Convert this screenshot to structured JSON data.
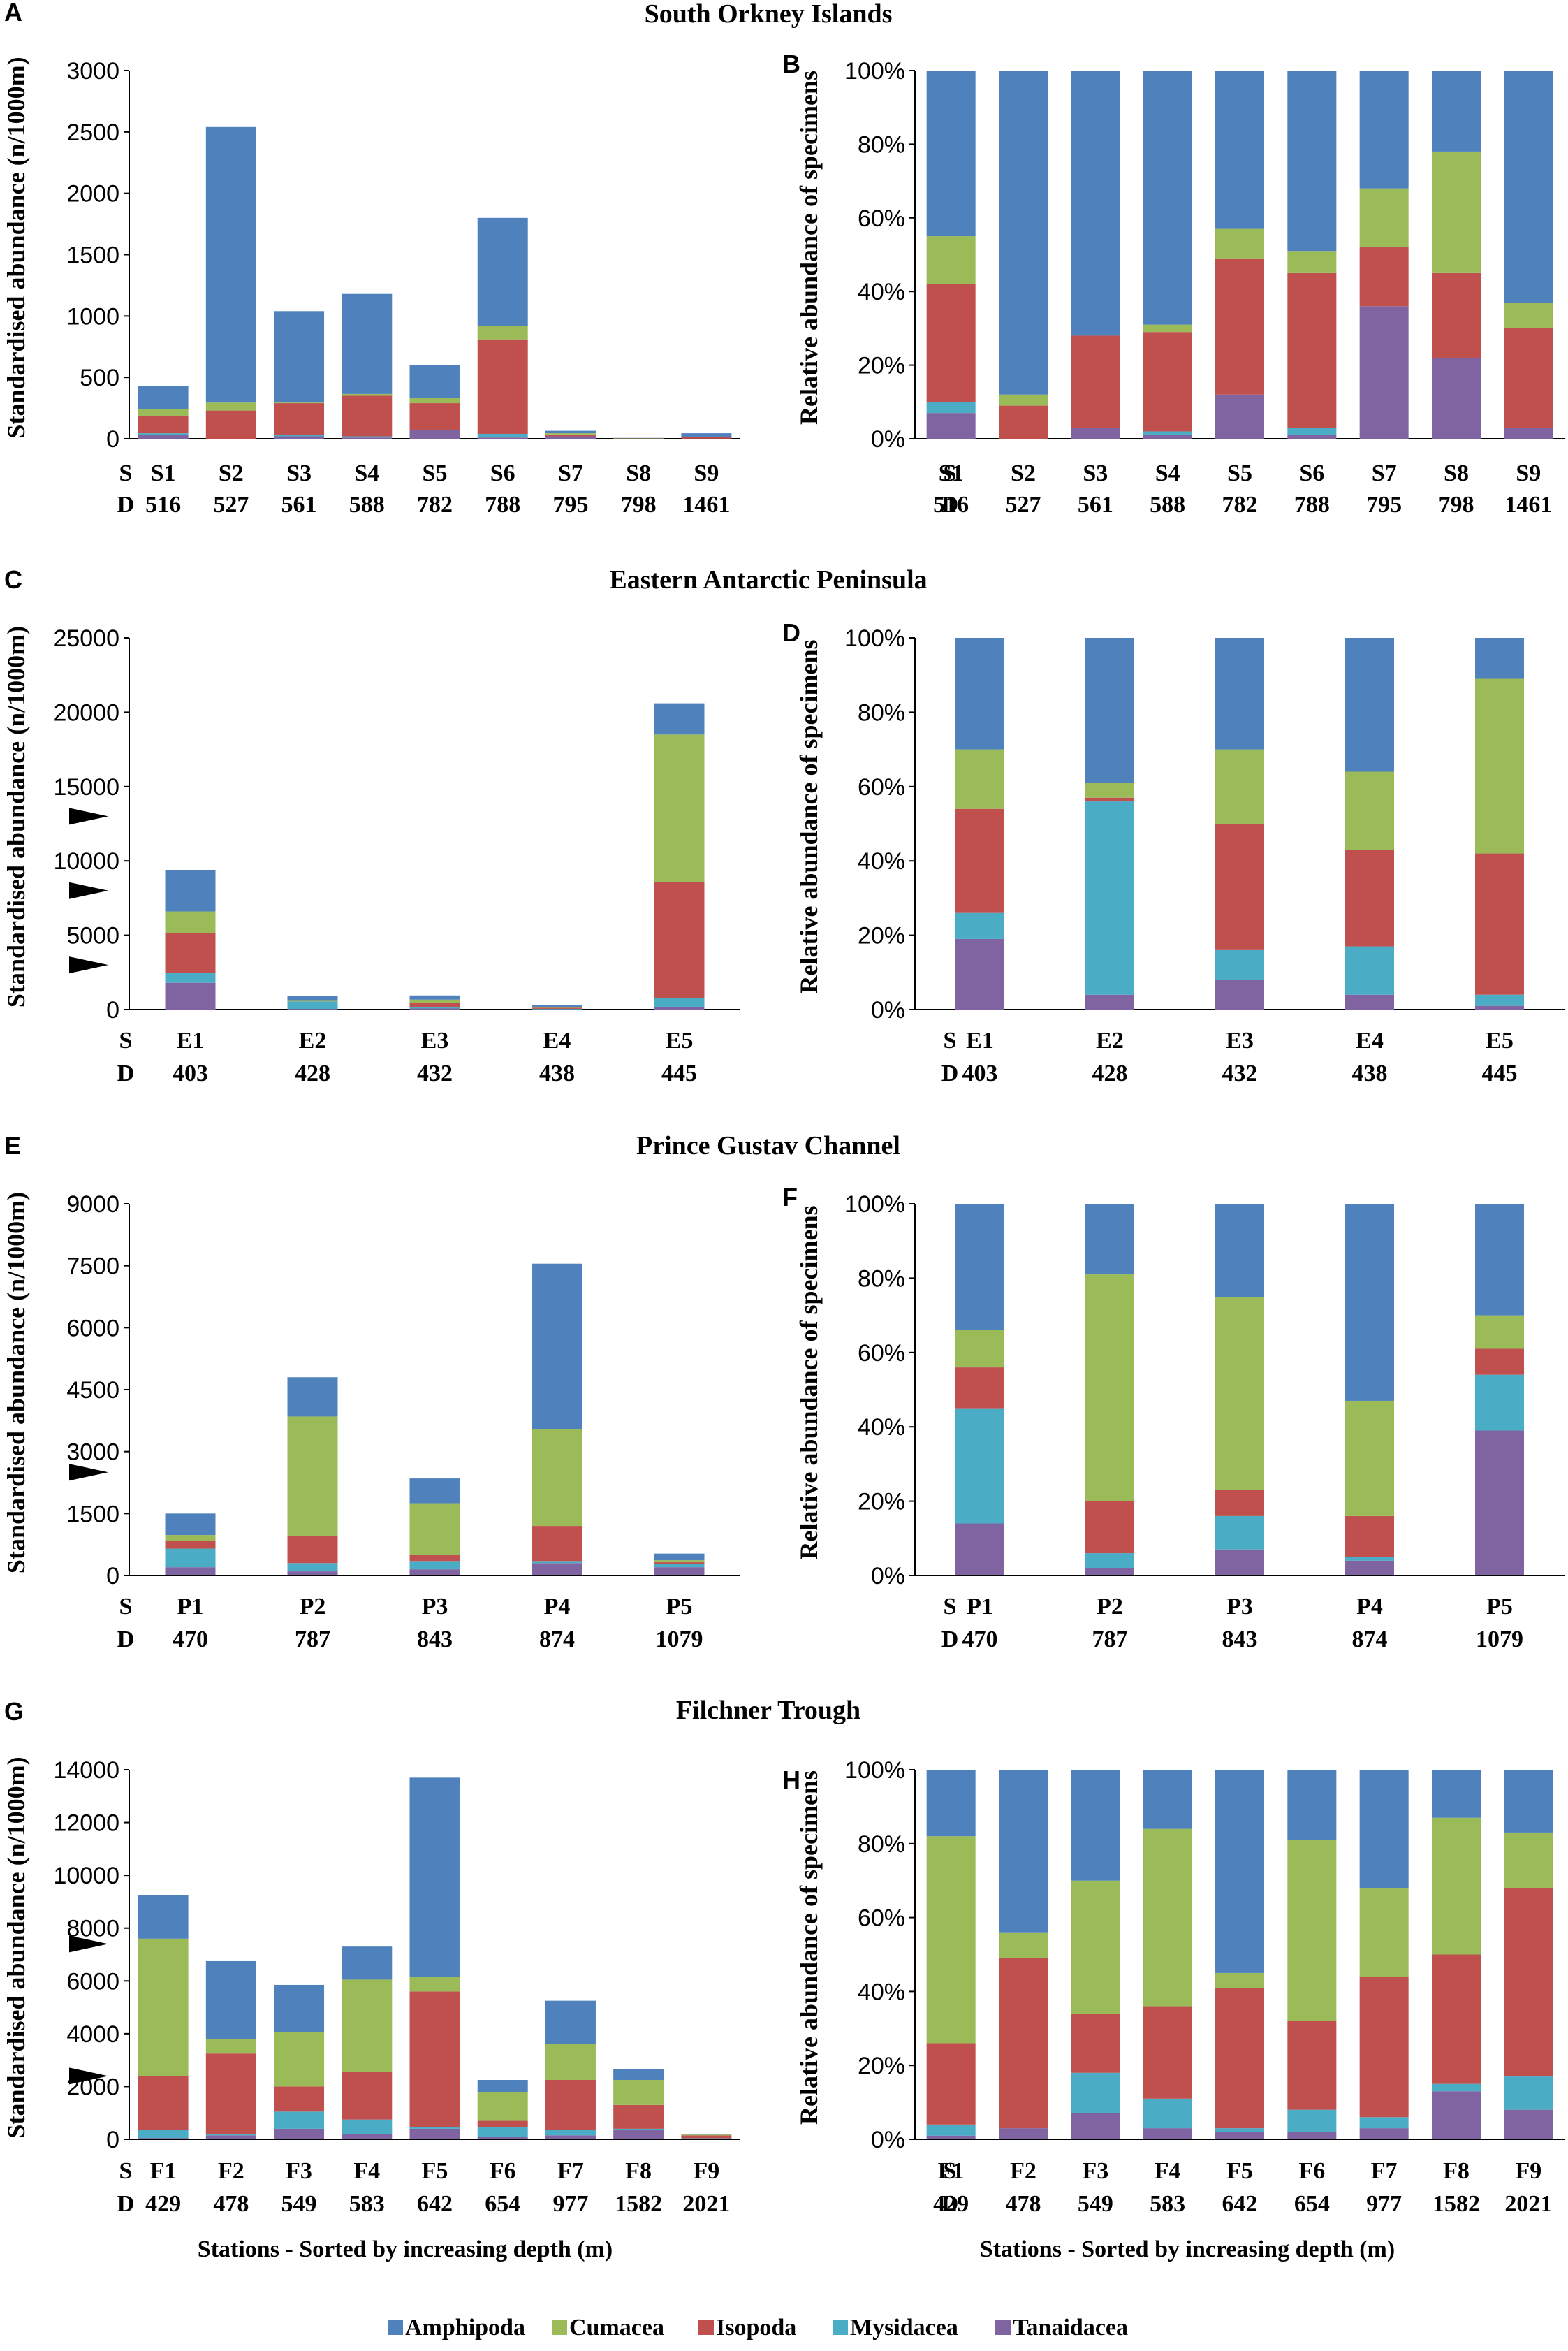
{
  "colors": {
    "Amphipoda": "#4F81BD",
    "Cumacea": "#9BBB59",
    "Isopoda": "#C0504D",
    "Mysidacea": "#4BACC6",
    "Tanaidacea": "#8064A2"
  },
  "legend": [
    "Amphipoda",
    "Cumacea",
    "Isopoda",
    "Mysidacea",
    "Tanaidacea"
  ],
  "region_titles": [
    "South Orkney Islands",
    "Eastern Antarctic Peninsula",
    "Prince Gustav Channel",
    "Filchner Trough"
  ],
  "row_labels": {
    "s": "S",
    "d": "D"
  },
  "xlabel": "Stations - Sorted by increasing depth (m)",
  "ylabel_abs": "Standardised abundance (n/1000m)",
  "ylabel_rel": "Relative abundance of specimens",
  "chart_data": [
    {
      "panel": "A",
      "type": "bar",
      "stacked": true,
      "region": "South Orkney Islands",
      "categories": [
        "S1",
        "S2",
        "S3",
        "S4",
        "S5",
        "S6",
        "S7",
        "S8",
        "S9"
      ],
      "depths": [
        "516",
        "527",
        "561",
        "588",
        "782",
        "788",
        "795",
        "798",
        "1461"
      ],
      "ylim": [
        0,
        3000
      ],
      "yticks": [
        0,
        500,
        1000,
        1500,
        2000,
        2500,
        3000
      ],
      "ytick_labels": [
        "0",
        "500",
        "1000",
        "1500",
        "2000",
        "2500",
        "3000"
      ],
      "series": [
        {
          "name": "Tanaidacea",
          "values": [
            30,
            0,
            20,
            10,
            70,
            10,
            20,
            0,
            1
          ]
        },
        {
          "name": "Mysidacea",
          "values": [
            15,
            0,
            10,
            10,
            0,
            30,
            0,
            0,
            0
          ]
        },
        {
          "name": "Isopoda",
          "values": [
            140,
            230,
            260,
            330,
            220,
            770,
            15,
            2,
            13
          ]
        },
        {
          "name": "Cumacea",
          "values": [
            55,
            65,
            5,
            15,
            40,
            110,
            10,
            3,
            3
          ]
        },
        {
          "name": "Amphipoda",
          "values": [
            190,
            2245,
            745,
            815,
            270,
            880,
            20,
            2,
            28
          ]
        }
      ],
      "ylabel": "Standardised abundance (n/1000m)",
      "arrows": []
    },
    {
      "panel": "B",
      "type": "bar",
      "stacked": true,
      "percent": true,
      "region": "South Orkney Islands",
      "categories": [
        "S1",
        "S2",
        "S3",
        "S4",
        "S5",
        "S6",
        "S7",
        "S8",
        "S9"
      ],
      "depths": [
        "516",
        "527",
        "561",
        "588",
        "782",
        "788",
        "795",
        "798",
        "1461"
      ],
      "ylim": [
        0,
        100
      ],
      "yticks": [
        0,
        20,
        40,
        60,
        80,
        100
      ],
      "ytick_labels": [
        "0%",
        "20%",
        "40%",
        "60%",
        "80%",
        "100%"
      ],
      "series": [
        {
          "name": "Tanaidacea",
          "values": [
            7,
            0,
            3,
            1,
            12,
            1,
            36,
            22,
            3
          ]
        },
        {
          "name": "Mysidacea",
          "values": [
            3,
            0,
            0,
            1,
            0,
            2,
            0,
            0,
            0
          ]
        },
        {
          "name": "Isopoda",
          "values": [
            32,
            9,
            25,
            27,
            37,
            42,
            16,
            23,
            27
          ]
        },
        {
          "name": "Cumacea",
          "values": [
            13,
            3,
            0,
            2,
            8,
            6,
            16,
            33,
            7
          ]
        },
        {
          "name": "Amphipoda",
          "values": [
            45,
            88,
            72,
            69,
            43,
            49,
            32,
            22,
            63
          ]
        }
      ],
      "ylabel": "Relative abundance of specimens"
    },
    {
      "panel": "C",
      "type": "bar",
      "stacked": true,
      "region": "Eastern Antarctic Peninsula",
      "categories": [
        "E1",
        "E2",
        "E3",
        "E4",
        "E5"
      ],
      "depths": [
        "403",
        "428",
        "432",
        "438",
        "445"
      ],
      "ylim": [
        0,
        25000
      ],
      "yticks": [
        0,
        5000,
        10000,
        15000,
        20000,
        25000
      ],
      "ytick_labels": [
        "0",
        "5000",
        "10000",
        "15000",
        "20000",
        "25000"
      ],
      "series": [
        {
          "name": "Tanaidacea",
          "values": [
            1800,
            40,
            70,
            10,
            150
          ]
        },
        {
          "name": "Mysidacea",
          "values": [
            650,
            500,
            70,
            40,
            650
          ]
        },
        {
          "name": "Isopoda",
          "values": [
            2700,
            10,
            330,
            70,
            7800
          ]
        },
        {
          "name": "Cumacea",
          "values": [
            1450,
            40,
            200,
            60,
            9900
          ]
        },
        {
          "name": "Amphipoda",
          "values": [
            2800,
            350,
            280,
            100,
            2100
          ]
        }
      ],
      "ylabel": "Standardised abundance (n/1000m)",
      "arrows": [
        3000,
        8000,
        13000
      ]
    },
    {
      "panel": "D",
      "type": "bar",
      "stacked": true,
      "percent": true,
      "region": "Eastern Antarctic Peninsula",
      "categories": [
        "E1",
        "E2",
        "E3",
        "E4",
        "E5"
      ],
      "depths": [
        "403",
        "428",
        "432",
        "438",
        "445"
      ],
      "ylim": [
        0,
        100
      ],
      "yticks": [
        0,
        20,
        40,
        60,
        80,
        100
      ],
      "ytick_labels": [
        "0%",
        "20%",
        "40%",
        "60%",
        "80%",
        "100%"
      ],
      "series": [
        {
          "name": "Tanaidacea",
          "values": [
            19,
            4,
            8,
            4,
            1
          ]
        },
        {
          "name": "Mysidacea",
          "values": [
            7,
            52,
            8,
            13,
            3
          ]
        },
        {
          "name": "Isopoda",
          "values": [
            28,
            1,
            34,
            26,
            38
          ]
        },
        {
          "name": "Cumacea",
          "values": [
            16,
            4,
            20,
            21,
            47
          ]
        },
        {
          "name": "Amphipoda",
          "values": [
            30,
            39,
            30,
            36,
            11
          ]
        }
      ],
      "ylabel": "Relative abundance of specimens"
    },
    {
      "panel": "E",
      "type": "bar",
      "stacked": true,
      "region": "Prince Gustav Channel",
      "categories": [
        "P1",
        "P2",
        "P3",
        "P4",
        "P5"
      ],
      "depths": [
        "470",
        "787",
        "843",
        "874",
        "1079"
      ],
      "ylim": [
        0,
        9000
      ],
      "yticks": [
        0,
        1500,
        3000,
        4500,
        6000,
        7500,
        9000
      ],
      "ytick_labels": [
        "0",
        "1500",
        "3000",
        "4500",
        "6000",
        "7500",
        "9000"
      ],
      "series": [
        {
          "name": "Tanaidacea",
          "values": [
            200,
            100,
            150,
            300,
            200
          ]
        },
        {
          "name": "Mysidacea",
          "values": [
            450,
            200,
            200,
            50,
            80
          ]
        },
        {
          "name": "Isopoda",
          "values": [
            180,
            650,
            150,
            850,
            40
          ]
        },
        {
          "name": "Cumacea",
          "values": [
            150,
            2900,
            1250,
            2350,
            50
          ]
        },
        {
          "name": "Amphipoda",
          "values": [
            520,
            950,
            600,
            4000,
            160
          ]
        }
      ],
      "ylabel": "Standardised abundance (n/1000m)",
      "arrows": [
        2500
      ]
    },
    {
      "panel": "F",
      "type": "bar",
      "stacked": true,
      "percent": true,
      "region": "Prince Gustav Channel",
      "categories": [
        "P1",
        "P2",
        "P3",
        "P4",
        "P5"
      ],
      "depths": [
        "470",
        "787",
        "843",
        "874",
        "1079"
      ],
      "ylim": [
        0,
        100
      ],
      "yticks": [
        0,
        20,
        40,
        60,
        80,
        100
      ],
      "ytick_labels": [
        "0%",
        "20%",
        "40%",
        "60%",
        "80%",
        "100%"
      ],
      "series": [
        {
          "name": "Tanaidacea",
          "values": [
            14,
            2,
            7,
            4,
            39
          ]
        },
        {
          "name": "Mysidacea",
          "values": [
            31,
            4,
            9,
            1,
            15
          ]
        },
        {
          "name": "Isopoda",
          "values": [
            11,
            14,
            7,
            11,
            7
          ]
        },
        {
          "name": "Cumacea",
          "values": [
            10,
            61,
            52,
            31,
            9
          ]
        },
        {
          "name": "Amphipoda",
          "values": [
            34,
            19,
            25,
            53,
            30
          ]
        }
      ],
      "ylabel": "Relative abundance of specimens"
    },
    {
      "panel": "G",
      "type": "bar",
      "stacked": true,
      "region": "Filchner Trough",
      "categories": [
        "F1",
        "F2",
        "F3",
        "F4",
        "F5",
        "F6",
        "F7",
        "F8",
        "F9"
      ],
      "depths": [
        "429",
        "478",
        "549",
        "583",
        "642",
        "654",
        "977",
        "1582",
        "2021"
      ],
      "ylim": [
        0,
        14000
      ],
      "yticks": [
        0,
        2000,
        4000,
        6000,
        8000,
        10000,
        12000,
        14000
      ],
      "ytick_labels": [
        "0",
        "2000",
        "4000",
        "6000",
        "8000",
        "10000",
        "12000",
        "14000"
      ],
      "series": [
        {
          "name": "Tanaidacea",
          "values": [
            50,
            150,
            400,
            200,
            400,
            100,
            150,
            350,
            20
          ]
        },
        {
          "name": "Mysidacea",
          "values": [
            300,
            50,
            650,
            550,
            50,
            350,
            200,
            50,
            20
          ]
        },
        {
          "name": "Isopoda",
          "values": [
            2050,
            3050,
            950,
            1800,
            5150,
            250,
            1900,
            900,
            110
          ]
        },
        {
          "name": "Cumacea",
          "values": [
            5200,
            550,
            2050,
            3500,
            550,
            1100,
            1350,
            950,
            30
          ]
        },
        {
          "name": "Amphipoda",
          "values": [
            1650,
            2950,
            1800,
            1250,
            7550,
            450,
            1650,
            400,
            30
          ]
        }
      ],
      "ylabel": "Standardised abundance (n/1000m)",
      "arrows": [
        2400,
        7400
      ]
    },
    {
      "panel": "H",
      "type": "bar",
      "stacked": true,
      "percent": true,
      "region": "Filchner Trough",
      "categories": [
        "F1",
        "F2",
        "F3",
        "F4",
        "F5",
        "F6",
        "F7",
        "F8",
        "F9"
      ],
      "depths": [
        "429",
        "478",
        "549",
        "583",
        "642",
        "654",
        "977",
        "1582",
        "2021"
      ],
      "ylim": [
        0,
        100
      ],
      "yticks": [
        0,
        20,
        40,
        60,
        80,
        100
      ],
      "ytick_labels": [
        "0%",
        "20%",
        "40%",
        "60%",
        "80%",
        "100%"
      ],
      "series": [
        {
          "name": "Tanaidacea",
          "values": [
            1,
            3,
            7,
            3,
            2,
            2,
            3,
            13,
            8
          ]
        },
        {
          "name": "Mysidacea",
          "values": [
            3,
            0,
            11,
            8,
            1,
            6,
            3,
            2,
            9
          ]
        },
        {
          "name": "Isopoda",
          "values": [
            22,
            46,
            16,
            25,
            38,
            24,
            38,
            35,
            51
          ]
        },
        {
          "name": "Cumacea",
          "values": [
            56,
            7,
            36,
            48,
            4,
            49,
            24,
            37,
            15
          ]
        },
        {
          "name": "Amphipoda",
          "values": [
            18,
            44,
            30,
            16,
            55,
            19,
            32,
            13,
            17
          ]
        }
      ],
      "ylabel": "Relative abundance of specimens"
    }
  ]
}
